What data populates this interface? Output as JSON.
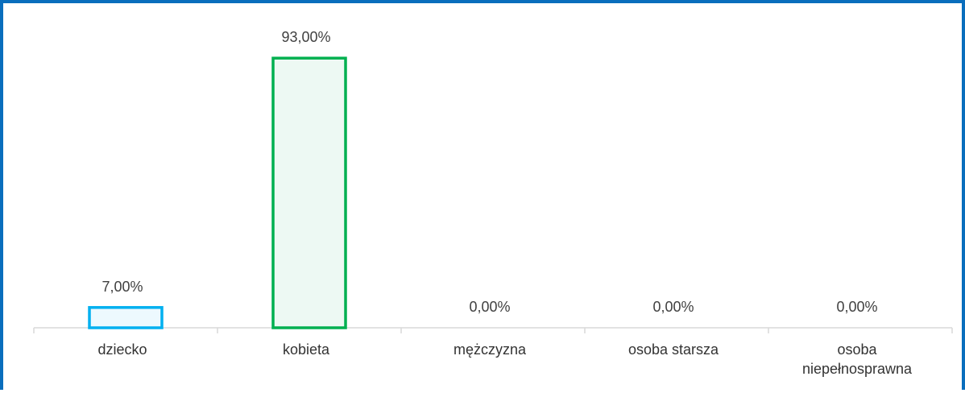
{
  "chart_data": {
    "type": "bar",
    "categories": [
      "dziecko",
      "kobieta",
      "mężczyzna",
      "osoba starsza",
      "osoba niepełnosprawna"
    ],
    "values": [
      7,
      93,
      0,
      0,
      0
    ],
    "value_labels": [
      "7,00%",
      "93,00%",
      "0,00%",
      "0,00%",
      "0,00%"
    ],
    "colors": [
      "#00b0f0",
      "#00b050",
      "#ffc000",
      "#7030a0",
      "#ff0000"
    ],
    "ylim": [
      0,
      100
    ]
  }
}
